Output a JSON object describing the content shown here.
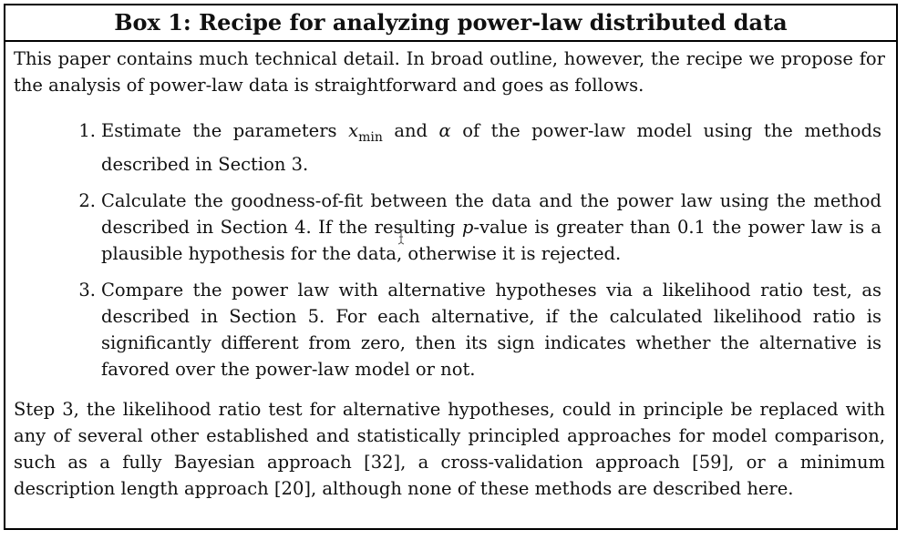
{
  "box": {
    "title": "Box 1: Recipe for analyzing power-law distributed data",
    "intro": "This paper contains much technical detail.  In broad outline, however, the recipe we propose for the analysis of power-law data is straightforward and goes as follows.",
    "steps": [
      {
        "number": "1.",
        "text_before": "Estimate the parameters ",
        "math1": "x",
        "math1_sub": "min",
        "text_mid": " and ",
        "math2": "α",
        "text_after": " of the power-law model using the methods described in Section 3."
      },
      {
        "number": "2.",
        "text_before": "Calculate the goodness-of-fit between the data and the power law using the method described in Section 4.  If the resulting ",
        "math1": "p",
        "text_after": "-value is greater than 0.1 the power law is a plausible hypothesis for the data, otherwise it is rejected."
      },
      {
        "number": "3.",
        "text": "Compare the power law with alternative hypotheses via a likelihood ratio test, as described in Section 5. For each alternative, if the calculated likelihood ratio is significantly different from zero, then its sign indicates whether the alternative is favored over the power-law model or not."
      }
    ],
    "outro": "Step 3, the likelihood ratio test for alternative hypotheses, could in principle be replaced with any of several other established and statistically principled approaches for model comparison, such as a fully Bayesian approach [32], a cross-validation approach [59], or a minimum description length approach [20], although none of these methods are described here."
  },
  "cursor": {
    "icon": "text-cursor-icon",
    "color": "#555555"
  }
}
